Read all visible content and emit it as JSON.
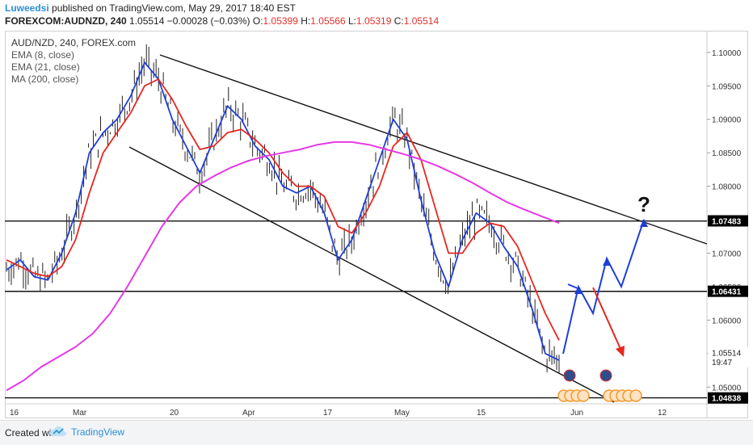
{
  "header": {
    "author": "Luweedsi",
    "published": "published on TradingView.com, May 29, 2017 18:40 EST",
    "symbol": "FOREXCOM:AUDNZD, 240",
    "last": "1.05514",
    "change": "−0.00028 (−0.03%)",
    "o_label": "O:",
    "o_value": "1.05399",
    "h_label": "H:",
    "h_value": "1.05566",
    "l_label": "L:",
    "l_value": "1.05319",
    "c_label": "C:",
    "c_value": "1.05514"
  },
  "legend": {
    "title": "AUD/NZD, 240, FOREX.com",
    "ema8": "EMA (8, close)",
    "ema21": "EMA (21, close)",
    "ma200": "MA (200, close)"
  },
  "footer": {
    "created_with": "Created with",
    "brand": "TradingView"
  },
  "colors": {
    "ema8": "#1f3fd6",
    "ema21": "#e8261f",
    "ma200": "#e639e6",
    "projection_blue": "#1f3fd6",
    "projection_red": "#e8261f",
    "event_orange": "#f29a2e"
  },
  "chart_data": {
    "type": "candlestick",
    "ylim": [
      1.0475,
      1.103
    ],
    "y_ticks": [
      "1.10000",
      "1.09500",
      "1.09000",
      "1.08500",
      "1.08000",
      "1.07500",
      "1.07000",
      "1.06500",
      "1.06000",
      "1.05500",
      "1.05000"
    ],
    "x_ticks": [
      "16",
      "Mar",
      "20",
      "Apr",
      "17",
      "May",
      "15",
      "Jun",
      "12"
    ],
    "price_labels": [
      {
        "text": "1.07483",
        "value": 1.07483
      },
      {
        "text": "1.06431",
        "value": 1.06431
      },
      {
        "text": "1.05514",
        "value": 1.05514
      },
      {
        "text": "19:47",
        "value": 1.0538
      },
      {
        "text": "1.04838",
        "value": 1.04838
      }
    ],
    "horizontal_levels": [
      1.0748,
      1.0643,
      1.0484
    ],
    "annotation": "?",
    "series": [
      {
        "name": "EMA (8, close)",
        "values": [
          1.0675,
          1.069,
          1.0665,
          1.066,
          1.07,
          1.076,
          1.085,
          1.088,
          1.09,
          1.0935,
          1.0985,
          1.096,
          1.09,
          1.086,
          1.082,
          1.087,
          1.092,
          1.09,
          1.086,
          1.084,
          1.08,
          1.079,
          1.08,
          1.076,
          1.069,
          1.072,
          1.078,
          1.084,
          1.09,
          1.087,
          1.078,
          1.07,
          1.065,
          1.072,
          1.076,
          1.0745,
          1.071,
          1.068,
          1.062,
          1.055,
          1.054
        ]
      },
      {
        "name": "EMA (21, close)",
        "values": [
          1.069,
          1.068,
          1.067,
          1.0665,
          1.068,
          1.072,
          1.079,
          1.085,
          1.088,
          1.091,
          1.095,
          1.096,
          1.093,
          1.089,
          1.0855,
          1.086,
          1.088,
          1.0885,
          1.087,
          1.085,
          1.082,
          1.08,
          1.08,
          1.0785,
          1.074,
          1.073,
          1.076,
          1.08,
          1.086,
          1.088,
          1.084,
          1.077,
          1.07,
          1.07,
          1.073,
          1.0745,
          1.074,
          1.071,
          1.066,
          1.061,
          1.057
        ]
      },
      {
        "name": "MA (200, close)",
        "values": [
          1.0495,
          1.051,
          1.053,
          1.0545,
          1.056,
          1.058,
          1.061,
          1.065,
          1.0695,
          1.074,
          1.0775,
          1.08,
          1.0815,
          1.0828,
          1.0838,
          1.0845,
          1.085,
          1.0855,
          1.0862,
          1.0866,
          1.0866,
          1.0862,
          1.0855,
          1.0848,
          1.084,
          1.083,
          1.0818,
          1.0805,
          1.079,
          1.0776,
          1.0765,
          1.0755,
          1.0745
        ]
      }
    ]
  }
}
